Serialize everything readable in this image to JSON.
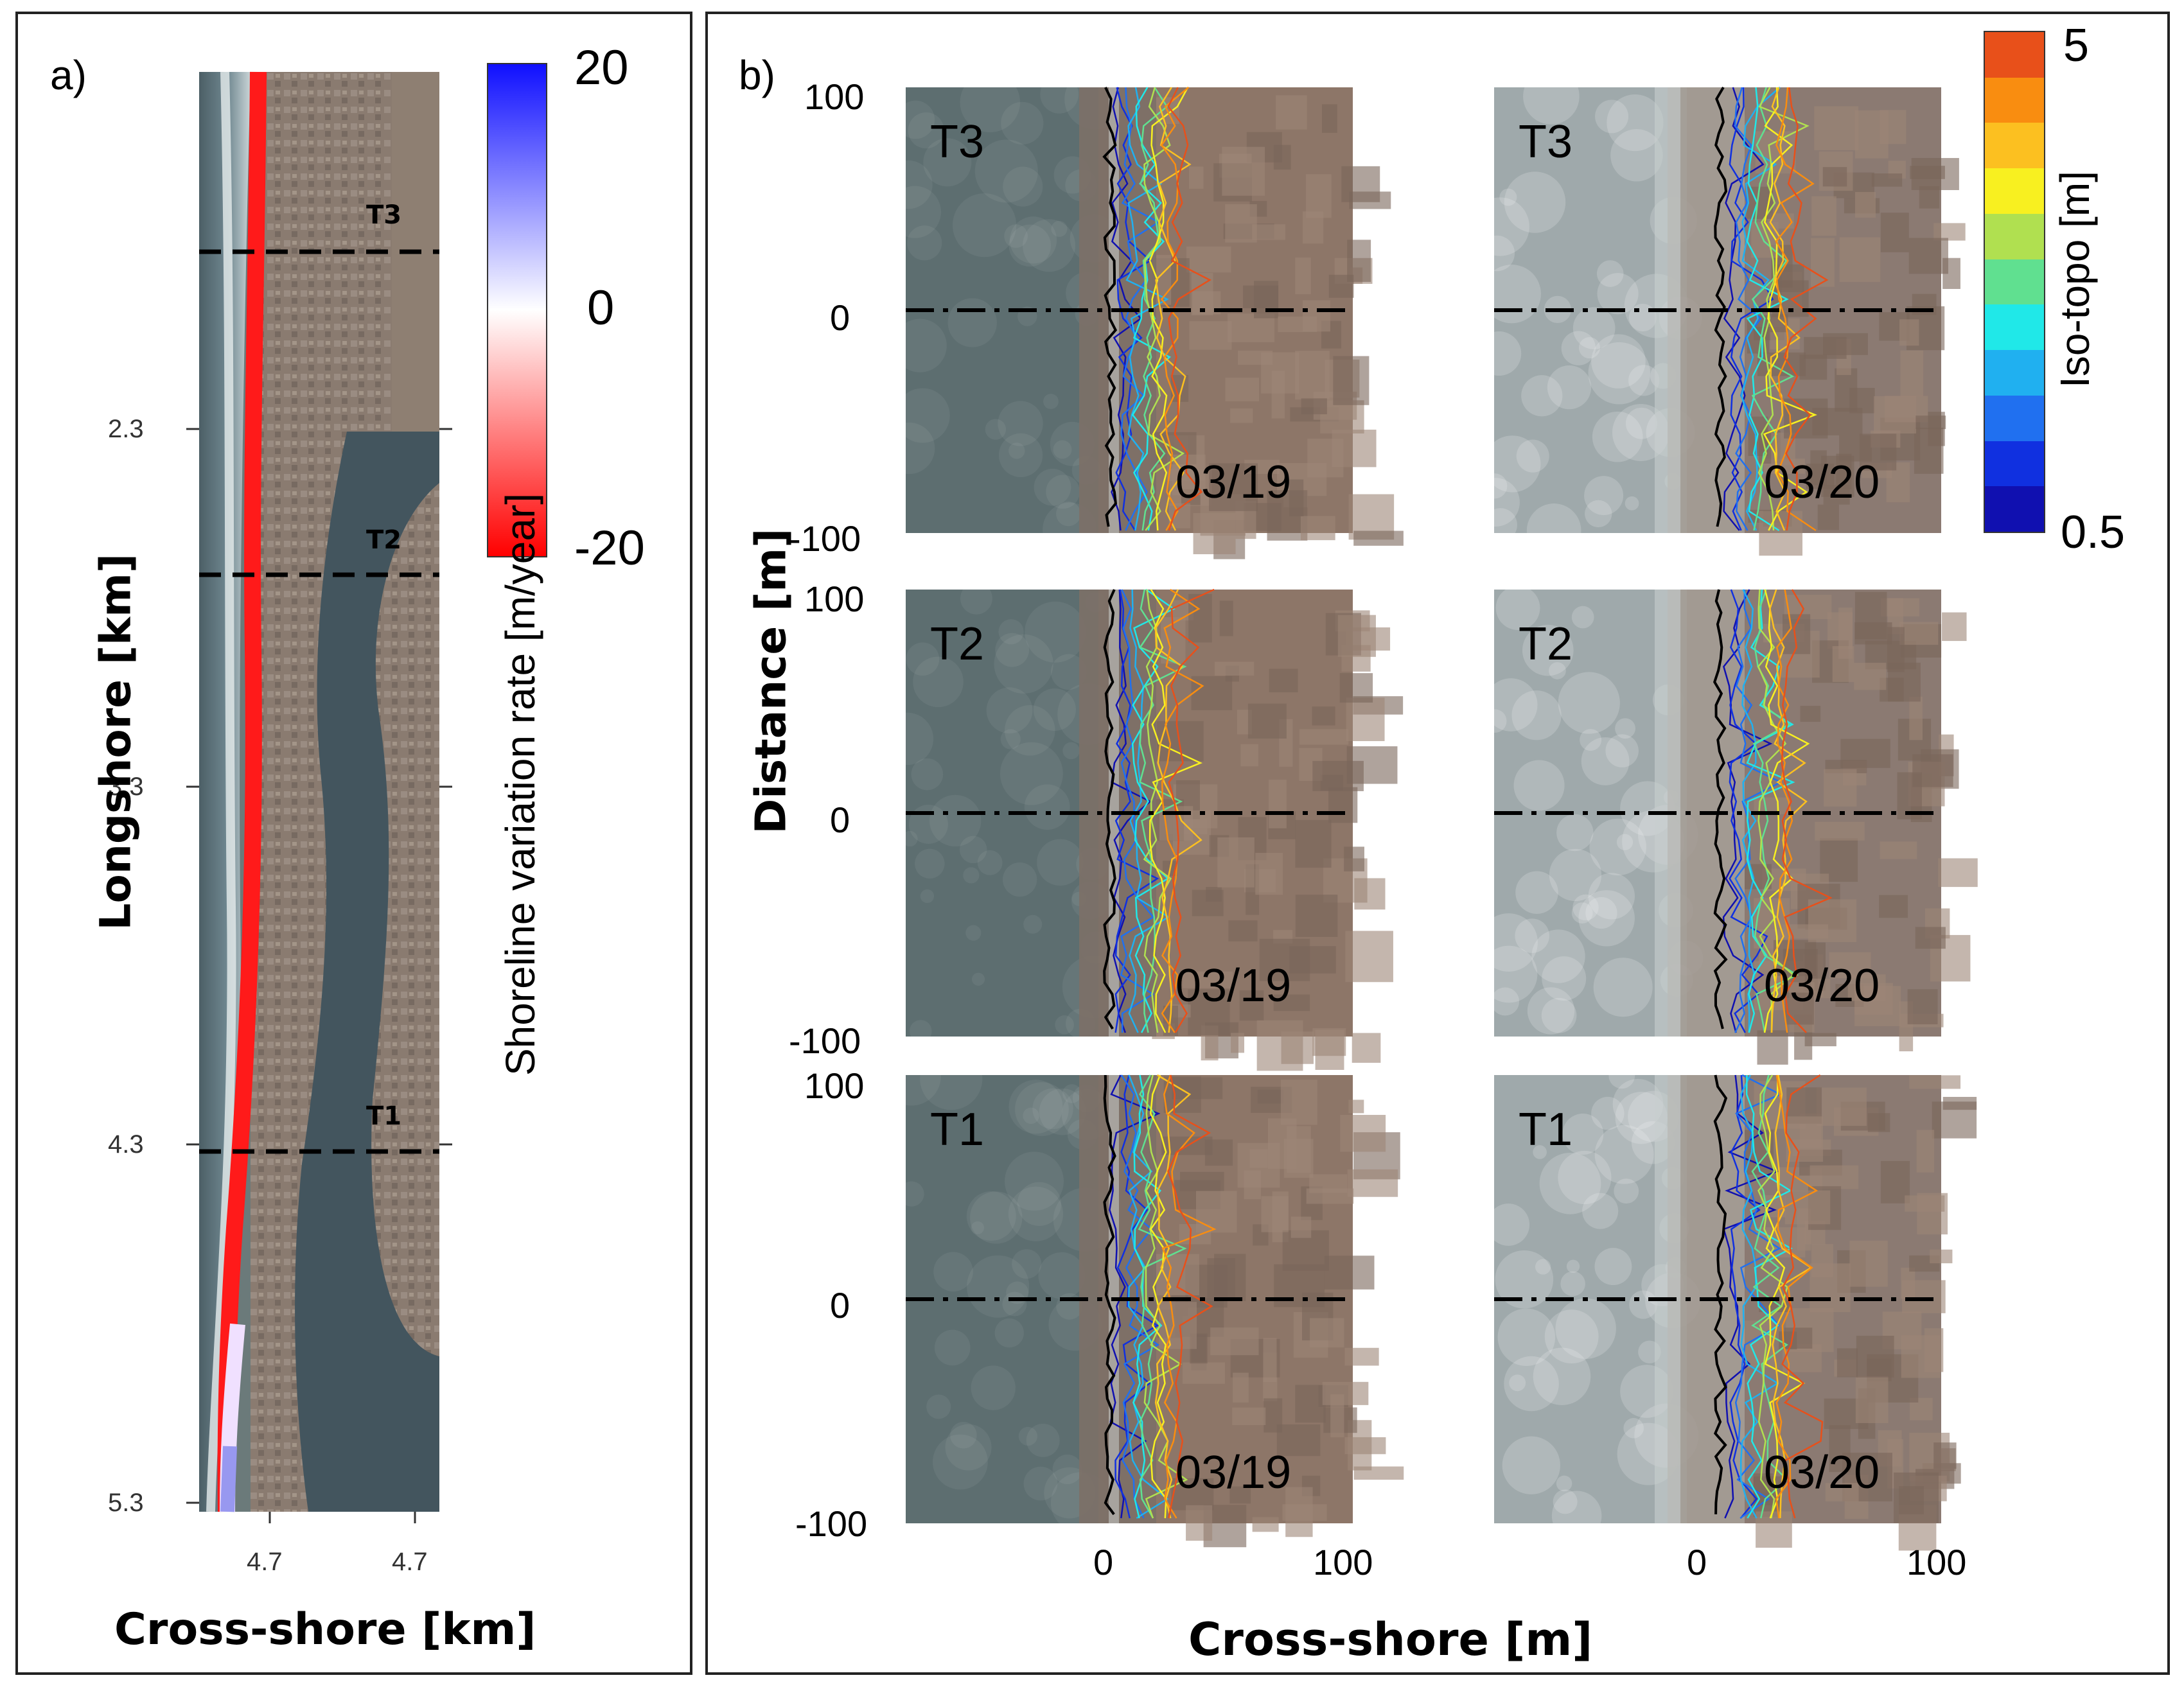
{
  "panel_a": {
    "label": "a)",
    "transects": [
      "T3",
      "T2",
      "T1"
    ],
    "y_ticks": [
      "2.3",
      "3.3",
      "4.3",
      "5.3"
    ],
    "x_ticks": [
      "4.7",
      "4.7"
    ],
    "ylabel": "Longshore [km]",
    "xlabel": "Cross-shore [km]",
    "colorbar": {
      "title": "Shoreline variation rate [m/year]",
      "ticks": [
        "20",
        "0",
        "-20"
      ],
      "colors": [
        "#1010ff",
        "#ffffff",
        "#ff0000"
      ]
    }
  },
  "panel_b": {
    "label": "b)",
    "ylabel": "Distance [m]",
    "xlabel": "Cross-shore [m]",
    "y_ticks": [
      "100",
      "0",
      "-100"
    ],
    "x_ticks": [
      "0",
      "100"
    ],
    "tiles": [
      {
        "transect": "T3",
        "date": "03/19"
      },
      {
        "transect": "T3",
        "date": "03/20"
      },
      {
        "transect": "T2",
        "date": "03/19"
      },
      {
        "transect": "T2",
        "date": "03/20"
      },
      {
        "transect": "T1",
        "date": "03/19"
      },
      {
        "transect": "T1",
        "date": "03/20"
      }
    ],
    "colorbar": {
      "title": "Iso-topo [m]",
      "max": "5",
      "min": "0.5",
      "colors": [
        "#e8501a",
        "#f98d10",
        "#fcc020",
        "#f8f020",
        "#b0e050",
        "#60e090",
        "#20e8e8",
        "#20b0f0",
        "#2070f0",
        "#1030e0",
        "#1010b0"
      ]
    }
  }
}
